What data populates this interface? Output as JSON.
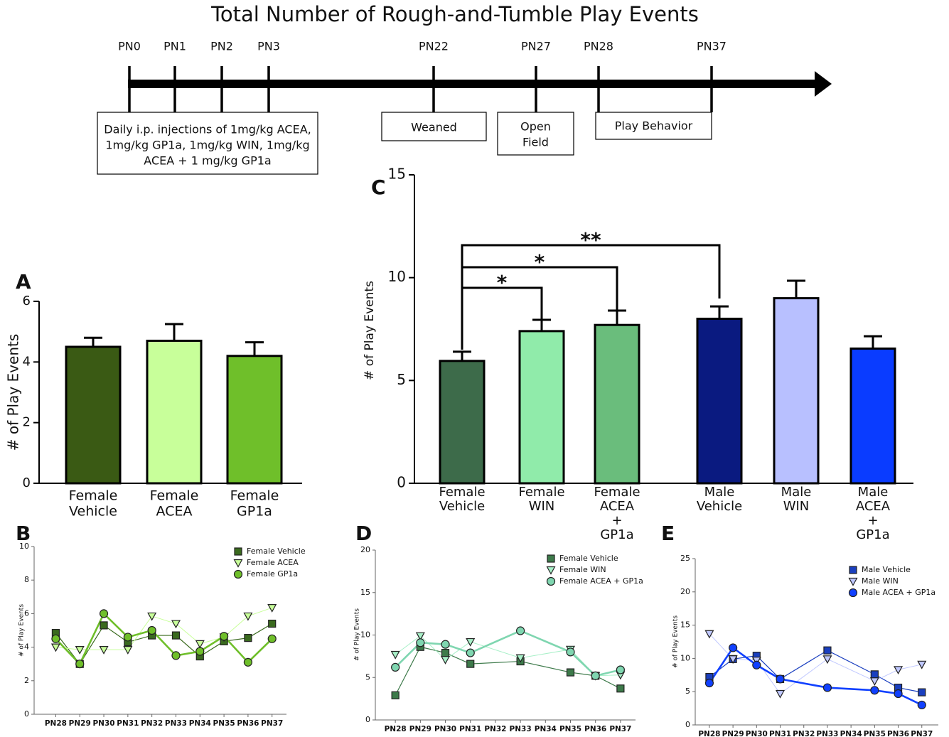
{
  "title": "Total Number of Rough-and-Tumble Play Events",
  "timeline": {
    "ticks": [
      "PN0",
      "PN1",
      "PN2",
      "PN3",
      "PN22",
      "PN27",
      "PN28",
      "PN37"
    ],
    "boxes": [
      [
        "Daily i.p. injections of 1mg/kg ACEA,",
        "1mg/kg GP1a, 1mg/kg WIN, 1mg/kg",
        "ACEA + 1 mg/kg GP1a"
      ],
      [
        "Weaned"
      ],
      [
        "Open",
        "Field"
      ],
      [
        "Play Behavior"
      ]
    ]
  },
  "chart_data": [
    {
      "type": "bar",
      "label": "A",
      "ylabel": "# of Play Events",
      "categories": [
        [
          "Female",
          "Vehicle"
        ],
        [
          "Female",
          "ACEA"
        ],
        [
          "Female",
          "GP1a"
        ]
      ],
      "values": [
        4.5,
        4.7,
        4.2
      ],
      "errors": [
        0.3,
        0.55,
        0.45
      ],
      "colors": [
        "#3a5a14",
        "#c8ff9a",
        "#6fbf2a"
      ],
      "ylim": [
        0,
        6
      ],
      "yticks": [
        0,
        2,
        4,
        6
      ]
    },
    {
      "type": "bar",
      "label": "C",
      "ylabel": "# of Play Events",
      "categories": [
        [
          "Female",
          "Vehicle"
        ],
        [
          "Female",
          "WIN"
        ],
        [
          "Female",
          "ACEA",
          "+",
          "GP1a"
        ],
        [
          "Male",
          "Vehicle"
        ],
        [
          "Male",
          "WIN"
        ],
        [
          "Male",
          "ACEA",
          "+",
          "GP1a"
        ]
      ],
      "values": [
        5.95,
        7.4,
        7.7,
        8.0,
        9.0,
        6.55
      ],
      "errors": [
        0.45,
        0.55,
        0.7,
        0.6,
        0.85,
        0.6
      ],
      "colors": [
        "#3d6b4a",
        "#90ebaa",
        "#6abd7c",
        "#0a1a80",
        "#b8c0ff",
        "#0a3cff"
      ],
      "ylim": [
        0,
        15
      ],
      "yticks": [
        0,
        5,
        10,
        15
      ],
      "annotations": [
        "*",
        "*",
        "**"
      ]
    },
    {
      "type": "line",
      "label": "B",
      "ylabel": "# of Play Events",
      "xlim": [
        27.1,
        37.6
      ],
      "ylim": [
        0,
        10
      ],
      "yticks": [
        0,
        2,
        4,
        6,
        8,
        10
      ],
      "xticks": [
        {
          "value": 28,
          "label": "PN28"
        },
        {
          "value": 29,
          "label": "PN29"
        },
        {
          "value": 30,
          "label": "PN30"
        },
        {
          "value": 31,
          "label": "PN31"
        },
        {
          "value": 32,
          "label": "PN32"
        },
        {
          "value": 33,
          "label": "PN33"
        },
        {
          "value": 34,
          "label": "PN34"
        },
        {
          "value": 35,
          "label": "PN35"
        },
        {
          "value": 36,
          "label": "PN36"
        },
        {
          "value": 37,
          "label": "PN37"
        }
      ],
      "series": [
        {
          "name": "Female Vehicle",
          "marker": "square",
          "color": "#3a6a1e",
          "x": [
            28,
            29,
            30,
            31,
            32,
            33,
            34,
            35,
            36,
            37
          ],
          "values": [
            4.85,
            3.0,
            5.3,
            4.3,
            4.7,
            4.7,
            3.45,
            4.35,
            4.55,
            5.4
          ]
        },
        {
          "name": "Female ACEA",
          "marker": "triangle",
          "color": "#c8ff9a",
          "x": [
            28,
            29,
            30,
            31,
            32,
            33,
            34,
            35,
            36,
            37
          ],
          "values": [
            4.0,
            3.85,
            3.85,
            3.85,
            5.85,
            5.4,
            4.2,
            4.6,
            5.85,
            6.35
          ]
        },
        {
          "name": "Female GP1a",
          "marker": "circle",
          "color": "#6fbf2a",
          "x": [
            28,
            29,
            30,
            31,
            32,
            33,
            34,
            35,
            36,
            37
          ],
          "values": [
            4.5,
            3.0,
            6.0,
            4.6,
            5.0,
            3.5,
            3.75,
            4.65,
            3.1,
            4.5
          ]
        }
      ]
    },
    {
      "type": "line",
      "label": "D",
      "ylabel": "# of Play Events",
      "xlim": [
        27.2,
        37.6
      ],
      "ylim": [
        0,
        20
      ],
      "yticks": [
        0,
        5,
        10,
        15,
        20
      ],
      "xticks": [
        {
          "value": 28,
          "label": "PN28"
        },
        {
          "value": 29,
          "label": "PN29"
        },
        {
          "value": 30,
          "label": "PN30"
        },
        {
          "value": 31,
          "label": "PN31"
        },
        {
          "value": 32,
          "label": "PN32"
        },
        {
          "value": 33,
          "label": "PN33"
        },
        {
          "value": 34,
          "label": "PN34"
        },
        {
          "value": 35,
          "label": "PN35"
        },
        {
          "value": 36,
          "label": "PN36"
        },
        {
          "value": 37,
          "label": "PN37"
        }
      ],
      "series": [
        {
          "name": "Female Vehicle",
          "marker": "square",
          "color": "#3d7a4a",
          "x": [
            28,
            29,
            30,
            31,
            33,
            35,
            36,
            37
          ],
          "values": [
            2.9,
            8.6,
            7.9,
            6.6,
            6.9,
            5.6,
            5.2,
            3.7
          ]
        },
        {
          "name": "Female WIN",
          "marker": "triangle",
          "color": "#a8f0c8",
          "x": [
            28,
            29,
            30,
            31,
            33,
            35,
            36,
            37
          ],
          "values": [
            7.7,
            9.9,
            7.1,
            9.2,
            7.3,
            8.3,
            5.2,
            5.3
          ]
        },
        {
          "name": "Female ACEA + GP1a",
          "marker": "circle",
          "color": "#7fd6b0",
          "x": [
            28,
            29,
            30,
            31,
            33,
            35,
            36,
            37
          ],
          "values": [
            6.2,
            9.1,
            8.9,
            7.9,
            10.5,
            8.0,
            5.2,
            5.9
          ]
        }
      ]
    },
    {
      "type": "line",
      "label": "E",
      "ylabel": "# of Play Events",
      "xlim": [
        27.4,
        37.7
      ],
      "ylim": [
        0,
        25
      ],
      "yticks": [
        0,
        5,
        10,
        15,
        20,
        25
      ],
      "xticks": [
        {
          "value": 28,
          "label": "PN28"
        },
        {
          "value": 29,
          "label": "PN29"
        },
        {
          "value": 30,
          "label": "PN30"
        },
        {
          "value": 31,
          "label": "PN31"
        },
        {
          "value": 32,
          "label": "PN32"
        },
        {
          "value": 33,
          "label": "PN33"
        },
        {
          "value": 34,
          "label": "PN34"
        },
        {
          "value": 35,
          "label": "PN35"
        },
        {
          "value": 36,
          "label": "PN36"
        },
        {
          "value": 37,
          "label": "PN37"
        }
      ],
      "series": [
        {
          "name": "Male Vehicle",
          "marker": "square",
          "color": "#1a3fbf",
          "x": [
            28,
            29,
            30,
            31,
            33,
            35,
            36,
            37
          ],
          "values": [
            7.2,
            9.9,
            10.4,
            6.9,
            11.2,
            7.6,
            5.6,
            4.9
          ]
        },
        {
          "name": "Male WIN",
          "marker": "triangle",
          "color": "#c0c8ff",
          "x": [
            28,
            29,
            30,
            31,
            33,
            35,
            36,
            37
          ],
          "values": [
            13.7,
            9.9,
            9.7,
            4.7,
            9.9,
            6.6,
            8.3,
            9.1
          ]
        },
        {
          "name": "Male ACEA + GP1a",
          "marker": "circle",
          "color": "#1040ff",
          "x": [
            28,
            29,
            30,
            31,
            33,
            35,
            36,
            37
          ],
          "values": [
            6.3,
            11.6,
            9.0,
            6.9,
            5.6,
            5.2,
            4.7,
            3.0
          ]
        }
      ]
    }
  ]
}
